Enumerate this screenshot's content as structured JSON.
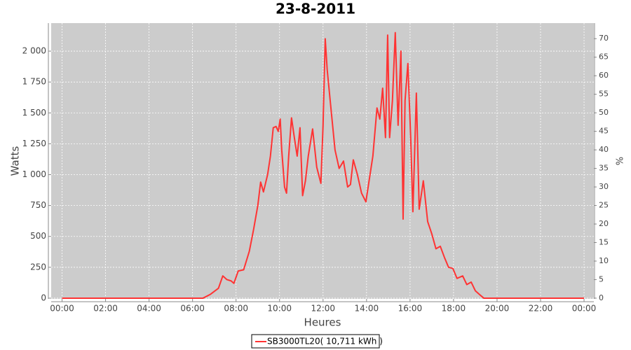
{
  "chart_data": {
    "type": "line",
    "title": "23-8-2011",
    "x_label": "Heures",
    "y_label": "Watts",
    "y2_label": "%",
    "x": [
      0,
      6.3,
      6.48,
      6.81,
      7.19,
      7.39,
      7.58,
      7.77,
      7.9,
      8.1,
      8.35,
      8.61,
      8.81,
      9.0,
      9.13,
      9.26,
      9.45,
      9.58,
      9.71,
      9.84,
      9.94,
      10.03,
      10.1,
      10.23,
      10.32,
      10.42,
      10.55,
      10.68,
      10.81,
      10.94,
      11.06,
      11.19,
      11.32,
      11.52,
      11.71,
      11.9,
      12.0,
      12.1,
      12.19,
      12.35,
      12.55,
      12.74,
      12.94,
      13.13,
      13.26,
      13.39,
      13.58,
      13.77,
      13.97,
      14.16,
      14.29,
      14.48,
      14.61,
      14.74,
      14.87,
      14.97,
      15.06,
      15.19,
      15.32,
      15.45,
      15.58,
      15.68,
      15.77,
      15.9,
      16.03,
      16.13,
      16.29,
      16.42,
      16.61,
      16.81,
      17.0,
      17.19,
      17.39,
      17.58,
      17.77,
      17.97,
      18.16,
      18.42,
      18.61,
      18.81,
      19.0,
      19.19,
      19.39,
      24
    ],
    "series": [
      {
        "name": "SB3000TL20( 10,711 kWh )",
        "color": "#ff3333",
        "values": [
          0,
          0,
          0,
          30,
          80,
          180,
          150,
          140,
          120,
          220,
          230,
          380,
          560,
          750,
          940,
          860,
          1000,
          1150,
          1380,
          1390,
          1350,
          1450,
          1200,
          900,
          850,
          1150,
          1460,
          1300,
          1150,
          1380,
          830,
          950,
          1150,
          1370,
          1060,
          930,
          1400,
          2100,
          1850,
          1560,
          1200,
          1050,
          1110,
          900,
          920,
          1120,
          1000,
          850,
          780,
          1000,
          1150,
          1540,
          1450,
          1700,
          1300,
          2130,
          1300,
          1600,
          2150,
          1400,
          2000,
          640,
          1600,
          1900,
          1300,
          700,
          1660,
          720,
          950,
          620,
          520,
          400,
          420,
          330,
          250,
          240,
          160,
          180,
          110,
          130,
          60,
          30,
          0,
          0
        ]
      }
    ],
    "xlim": [
      -0.5,
      24.45
    ],
    "xticks": [
      {
        "value": 0,
        "label": "00:00"
      },
      {
        "value": 2,
        "label": "02:00"
      },
      {
        "value": 4,
        "label": "04:00"
      },
      {
        "value": 6,
        "label": "06:00"
      },
      {
        "value": 8,
        "label": "08:00"
      },
      {
        "value": 10,
        "label": "10:00"
      },
      {
        "value": 12,
        "label": "12:00"
      },
      {
        "value": 14,
        "label": "14:00"
      },
      {
        "value": 16,
        "label": "16:00"
      },
      {
        "value": 18,
        "label": "18:00"
      },
      {
        "value": 20,
        "label": "20:00"
      },
      {
        "value": 22,
        "label": "22:00"
      },
      {
        "value": 24,
        "label": "00:00"
      }
    ],
    "ylim": [
      -6,
      2227
    ],
    "yticks": [
      0,
      250,
      500,
      750,
      {
        "value": 1000,
        "label": "1 000"
      },
      {
        "value": 1250,
        "label": "1 250"
      },
      {
        "value": 1500,
        "label": "1 500"
      },
      {
        "value": 1750,
        "label": "1 750"
      },
      {
        "value": 2000,
        "label": "2 000"
      }
    ],
    "y2lim": [
      -0.2,
      74.2
    ],
    "y2ticks": [
      0,
      5,
      10,
      15,
      20,
      25,
      30,
      35,
      40,
      45,
      50,
      55,
      60,
      65,
      70
    ],
    "grid": true,
    "legend": "bottom",
    "background": "#cccccc"
  }
}
